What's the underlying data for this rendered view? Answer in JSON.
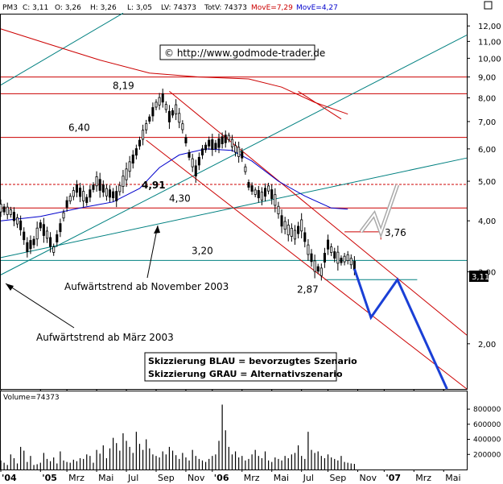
{
  "header": {
    "symbol": "PM3",
    "close_label": "C: 3,11",
    "open_label": "O: 3,26",
    "high_label": "H: 3,26",
    "low_label": "L: 3,05",
    "last_volume_label": "LV: 74373",
    "total_volume_label": "TotV: 74373",
    "ma_red_label": "MovE=7,29",
    "ma_blue_label": "MovE=4,27"
  },
  "url": "© http://www.godmode-trader.de",
  "legend": {
    "line1": "Skizzierung BLAU = bevorzugtes Szenario",
    "line2": "Skizzierung GRAU = Alternativszenario"
  },
  "volume_label": "Volume=74373",
  "price_badge": "3,11",
  "colors": {
    "candle": "#000000",
    "ma_red": "#cc0000",
    "ma_blue": "#0000cc",
    "trend_teal": "#008080",
    "channel_red": "#cc0000",
    "scenario_blue": "#1a3fd6",
    "scenario_grey": "#aaaaaa",
    "volume_bar": "#000000"
  },
  "chart_data": {
    "type": "candlestick",
    "price_scale": "log",
    "y_range": [
      1.55,
      12.8
    ],
    "y_ticks": [
      2.0,
      3.0,
      4.0,
      5.0,
      6.0,
      7.0,
      8.0,
      9.0,
      10.0,
      11.0,
      12.0
    ],
    "y_tick_labels": [
      "2,00",
      "3,00",
      "4,00",
      "5,00",
      "6,00",
      "7,00",
      "8,00",
      "9,00",
      "10,00",
      "11,00",
      "12,00"
    ],
    "x_ticks": [
      "'04",
      "'05",
      "Mrz",
      "Mai",
      "Jul",
      "Sep",
      "Nov",
      "'06",
      "Mrz",
      "Mai",
      "Jul",
      "Sep",
      "Nov",
      "'07",
      "Mrz",
      "Mai"
    ],
    "x_tick_pos": [
      0,
      12,
      20,
      29,
      38,
      47,
      56,
      64,
      73,
      82,
      91,
      99,
      108,
      116,
      125,
      134
    ],
    "x_range": [
      0,
      141
    ],
    "last_bar": 107,
    "levels": [
      {
        "value": 8.19,
        "label": "8,19",
        "color": "#cc0000",
        "style": "solid"
      },
      {
        "value": 6.4,
        "label": "6,40",
        "color": "#cc0000",
        "style": "solid"
      },
      {
        "value": 4.91,
        "label": "4,91",
        "color": "#cc0000",
        "style": "dotted"
      },
      {
        "value": 4.3,
        "label": "4,30",
        "color": "#cc0000",
        "style": "solid"
      },
      {
        "value": 3.2,
        "label": "3,20",
        "color": "#008080",
        "style": "solid"
      },
      {
        "value": 2.87,
        "label": "2,87",
        "color": "#008080",
        "style": "solid"
      },
      {
        "value": 3.76,
        "label": "3,76",
        "color": "#cc0000",
        "style": "solid"
      },
      {
        "value": 9.0,
        "label": "",
        "color": "#cc0000",
        "style": "solid"
      }
    ],
    "annotations": [
      {
        "text": "Aufwärtstrend ab November 2003"
      },
      {
        "text": "Aufwärtstrend ab März 2003"
      }
    ],
    "price_path": [
      [
        0,
        4.3
      ],
      [
        3,
        4.2
      ],
      [
        6,
        3.9
      ],
      [
        8,
        3.45
      ],
      [
        10,
        3.55
      ],
      [
        12,
        3.9
      ],
      [
        14,
        3.7
      ],
      [
        16,
        3.4
      ],
      [
        18,
        3.85
      ],
      [
        20,
        4.4
      ],
      [
        23,
        4.8
      ],
      [
        26,
        4.5
      ],
      [
        29,
        5.0
      ],
      [
        32,
        4.7
      ],
      [
        35,
        4.6
      ],
      [
        38,
        5.2
      ],
      [
        41,
        5.9
      ],
      [
        44,
        6.8
      ],
      [
        47,
        7.7
      ],
      [
        49,
        8.0
      ],
      [
        51,
        7.2
      ],
      [
        53,
        7.5
      ],
      [
        55,
        6.8
      ],
      [
        57,
        5.8
      ],
      [
        59,
        5.3
      ],
      [
        61,
        5.9
      ],
      [
        63,
        6.2
      ],
      [
        65,
        6.1
      ],
      [
        67,
        6.3
      ],
      [
        69,
        6.4
      ],
      [
        71,
        6.0
      ],
      [
        73,
        5.8
      ],
      [
        75,
        4.9
      ],
      [
        77,
        4.7
      ],
      [
        79,
        4.6
      ],
      [
        81,
        4.8
      ],
      [
        83,
        4.5
      ],
      [
        85,
        4.0
      ],
      [
        87,
        3.8
      ],
      [
        89,
        3.7
      ],
      [
        91,
        3.9
      ],
      [
        93,
        3.4
      ],
      [
        95,
        3.1
      ],
      [
        97,
        3.0
      ],
      [
        99,
        3.5
      ],
      [
        101,
        3.3
      ],
      [
        103,
        3.2
      ],
      [
        105,
        3.25
      ],
      [
        107,
        3.11
      ]
    ],
    "ma_red": [
      [
        0,
        11.8
      ],
      [
        15,
        10.8
      ],
      [
        30,
        9.9
      ],
      [
        45,
        9.2
      ],
      [
        60,
        9.0
      ],
      [
        75,
        8.9
      ],
      [
        85,
        8.5
      ],
      [
        95,
        7.8
      ],
      [
        105,
        7.3
      ]
    ],
    "ma_blue": [
      [
        0,
        4.0
      ],
      [
        12,
        4.1
      ],
      [
        24,
        4.3
      ],
      [
        34,
        4.45
      ],
      [
        42,
        4.8
      ],
      [
        48,
        5.4
      ],
      [
        54,
        5.8
      ],
      [
        62,
        6.0
      ],
      [
        70,
        5.95
      ],
      [
        76,
        5.6
      ],
      [
        84,
        5.0
      ],
      [
        92,
        4.6
      ],
      [
        100,
        4.3
      ],
      [
        105,
        4.27
      ]
    ],
    "trendlines": [
      {
        "name": "teal-steep",
        "points": [
          [
            0,
            8.6
          ],
          [
            37,
            12.9
          ]
        ],
        "color": "#008080"
      },
      {
        "name": "teal-march-2003",
        "points": [
          [
            0,
            2.95
          ],
          [
            141,
            11.4
          ]
        ],
        "color": "#008080"
      },
      {
        "name": "teal-nov-2003",
        "points": [
          [
            0,
            3.25
          ],
          [
            141,
            5.7
          ]
        ],
        "color": "#008080"
      },
      {
        "name": "channel-upper",
        "points": [
          [
            51,
            8.3
          ],
          [
            141,
            2.1
          ]
        ],
        "color": "#cc0000"
      },
      {
        "name": "channel-lower",
        "points": [
          [
            44,
            6.3
          ],
          [
            141,
            1.55
          ]
        ],
        "color": "#cc0000"
      },
      {
        "name": "ma-red-ext",
        "points": [
          [
            90,
            8.3
          ],
          [
            103,
            7.1
          ]
        ],
        "color": "#cc0000"
      }
    ],
    "scenario_blue": [
      [
        107,
        3.05
      ],
      [
        112,
        2.32
      ],
      [
        120,
        2.87
      ],
      [
        135,
        1.55
      ]
    ],
    "scenario_grey": [
      [
        109,
        3.76
      ],
      [
        113,
        4.15
      ],
      [
        115,
        3.75
      ],
      [
        120,
        4.9
      ]
    ],
    "volume": {
      "y_ticks": [
        200000,
        400000,
        600000,
        800000
      ],
      "y_tick_labels": [
        "200000",
        "400000",
        "600000",
        "800000"
      ],
      "y_max": 950000,
      "bars": [
        120000,
        90000,
        60000,
        200000,
        150000,
        80000,
        300000,
        250000,
        100000,
        180000,
        60000,
        70000,
        90000,
        220000,
        140000,
        110000,
        160000,
        80000,
        240000,
        120000,
        100000,
        90000,
        130000,
        110000,
        150000,
        140000,
        200000,
        180000,
        90000,
        260000,
        210000,
        320000,
        150000,
        280000,
        420000,
        350000,
        250000,
        480000,
        380000,
        300000,
        220000,
        500000,
        340000,
        260000,
        400000,
        280000,
        200000,
        180000,
        160000,
        240000,
        200000,
        300000,
        250000,
        190000,
        140000,
        220000,
        160000,
        120000,
        260000,
        180000,
        140000,
        120000,
        100000,
        140000,
        180000,
        200000,
        380000,
        860000,
        520000,
        300000,
        200000,
        240000,
        160000,
        180000,
        120000,
        140000,
        200000,
        260000,
        180000,
        150000,
        240000,
        120000,
        100000,
        160000,
        140000,
        120000,
        180000,
        150000,
        200000,
        220000,
        320000,
        180000,
        140000,
        500000,
        260000,
        220000,
        240000,
        180000,
        150000,
        200000,
        160000,
        140000,
        120000,
        180000,
        100000,
        90000,
        80000,
        74373
      ]
    }
  }
}
